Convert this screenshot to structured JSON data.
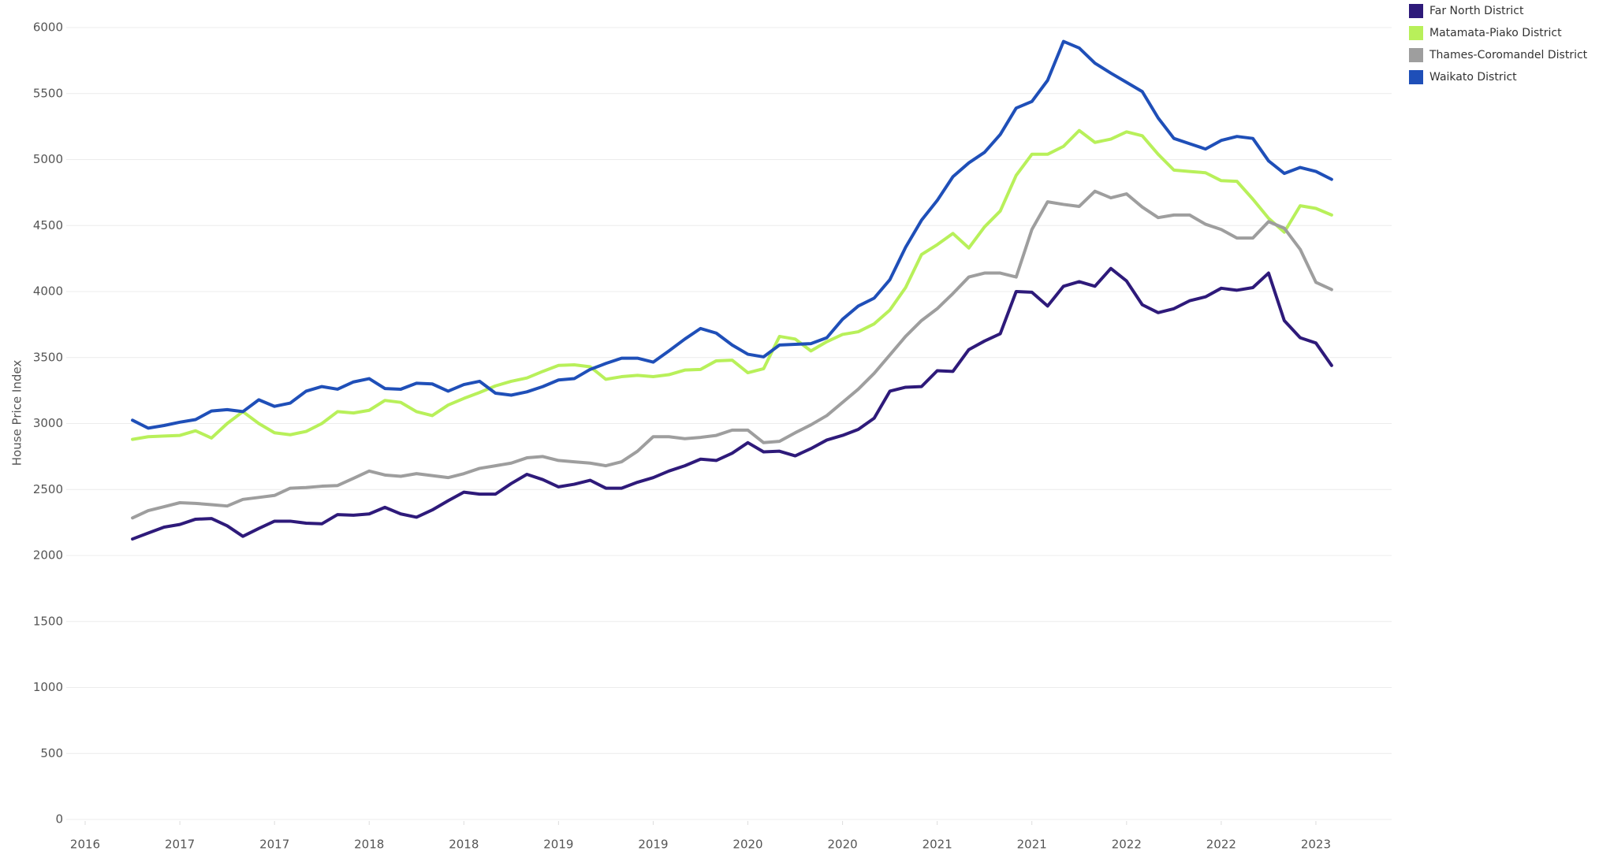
{
  "chart_data": {
    "type": "line",
    "y_label": "House Price Index",
    "x": [
      2016.75,
      2016.833,
      2016.917,
      2017,
      2017.083,
      2017.167,
      2017.25,
      2017.333,
      2017.417,
      2017.5,
      2017.583,
      2017.667,
      2017.75,
      2017.833,
      2017.917,
      2018,
      2018.083,
      2018.167,
      2018.25,
      2018.333,
      2018.417,
      2018.5,
      2018.583,
      2018.667,
      2018.75,
      2018.833,
      2018.917,
      2019,
      2019.083,
      2019.167,
      2019.25,
      2019.333,
      2019.417,
      2019.5,
      2019.583,
      2019.667,
      2019.75,
      2019.833,
      2019.917,
      2020,
      2020.083,
      2020.167,
      2020.25,
      2020.333,
      2020.417,
      2020.5,
      2020.583,
      2020.667,
      2020.75,
      2020.833,
      2020.917,
      2021,
      2021.083,
      2021.167,
      2021.25,
      2021.333,
      2021.417,
      2021.5,
      2021.583,
      2021.667,
      2021.75,
      2021.833,
      2021.917,
      2022,
      2022.083,
      2022.167,
      2022.25,
      2022.333,
      2022.417,
      2022.5,
      2022.583,
      2022.667,
      2022.75,
      2022.833,
      2022.917,
      2023,
      2023.083
    ],
    "series": [
      {
        "name": "Far North District",
        "color": "#2e1a7a",
        "values": [
          2125,
          2170,
          2215,
          2235,
          2275,
          2280,
          2225,
          2145,
          2205,
          2260,
          2260,
          2245,
          2240,
          2310,
          2305,
          2315,
          2365,
          2315,
          2290,
          2345,
          2415,
          2480,
          2465,
          2465,
          2545,
          2615,
          2575,
          2520,
          2540,
          2570,
          2510,
          2510,
          2555,
          2590,
          2640,
          2680,
          2730,
          2720,
          2775,
          2855,
          2785,
          2790,
          2755,
          2810,
          2875,
          2910,
          2955,
          3040,
          3245,
          3275,
          3280,
          3400,
          3395,
          3560,
          3625,
          3680,
          4000,
          3995,
          3890,
          4040,
          4075,
          4040,
          4175,
          4080,
          3900,
          3840,
          3870,
          3930,
          3960,
          4025,
          4010,
          4030,
          4140,
          3780,
          3650,
          3610,
          3440
        ]
      },
      {
        "name": "Matamata-Piako District",
        "color": "#b8f05a",
        "values": [
          2880,
          2900,
          2905,
          2910,
          2945,
          2890,
          3000,
          3090,
          3000,
          2930,
          2915,
          2940,
          3000,
          3090,
          3080,
          3100,
          3175,
          3160,
          3090,
          3060,
          3140,
          3190,
          3235,
          3285,
          3320,
          3345,
          3395,
          3440,
          3445,
          3430,
          3335,
          3355,
          3365,
          3355,
          3370,
          3405,
          3410,
          3475,
          3480,
          3385,
          3415,
          3660,
          3640,
          3550,
          3620,
          3675,
          3695,
          3755,
          3860,
          4030,
          4280,
          4355,
          4440,
          4330,
          4490,
          4610,
          4880,
          5040,
          5040,
          5100,
          5220,
          5130,
          5155,
          5210,
          5180,
          5040,
          4920,
          4910,
          4900,
          4840,
          4835,
          4700,
          4555,
          4450,
          4650,
          4630,
          4580
        ]
      },
      {
        "name": "Thames-Coromandel District",
        "color": "#9e9e9e",
        "values": [
          2285,
          2340,
          2370,
          2400,
          2395,
          2385,
          2375,
          2425,
          2440,
          2455,
          2510,
          2515,
          2525,
          2530,
          2585,
          2640,
          2610,
          2600,
          2620,
          2605,
          2590,
          2620,
          2660,
          2680,
          2700,
          2740,
          2750,
          2720,
          2710,
          2700,
          2680,
          2710,
          2790,
          2900,
          2900,
          2885,
          2895,
          2910,
          2950,
          2950,
          2855,
          2865,
          2930,
          2990,
          3060,
          3160,
          3260,
          3380,
          3520,
          3660,
          3780,
          3870,
          3985,
          4110,
          4140,
          4140,
          4110,
          4470,
          4680,
          4660,
          4645,
          4760,
          4710,
          4740,
          4640,
          4560,
          4580,
          4580,
          4510,
          4470,
          4405,
          4405,
          4530,
          4480,
          4320,
          4070,
          4015
        ]
      },
      {
        "name": "Waikato District",
        "color": "#1f4fb8",
        "values": [
          3025,
          2965,
          2985,
          3010,
          3030,
          3095,
          3105,
          3090,
          3180,
          3130,
          3155,
          3245,
          3280,
          3260,
          3315,
          3340,
          3265,
          3260,
          3305,
          3300,
          3245,
          3295,
          3320,
          3230,
          3215,
          3240,
          3280,
          3330,
          3340,
          3410,
          3455,
          3495,
          3495,
          3465,
          3550,
          3640,
          3720,
          3685,
          3595,
          3525,
          3505,
          3595,
          3600,
          3605,
          3650,
          3790,
          3890,
          3950,
          4090,
          4335,
          4540,
          4690,
          4870,
          4975,
          5055,
          5190,
          5390,
          5440,
          5600,
          5895,
          5845,
          5730,
          5655,
          5585,
          5515,
          5315,
          5160,
          5120,
          5080,
          5145,
          5175,
          5160,
          4990,
          4895,
          4940,
          4910,
          4850
        ]
      }
    ],
    "xlim": [
      2016.4,
      2023.4
    ],
    "xticks": [
      {
        "value": 2016.5,
        "label": "2016"
      },
      2017,
      {
        "value": 2017.5,
        "label": "2017"
      },
      2018,
      {
        "value": 2018.5,
        "label": "2018"
      },
      2019,
      {
        "value": 2019.5,
        "label": "2019"
      },
      2020,
      {
        "value": 2020.5,
        "label": "2020"
      },
      2021,
      {
        "value": 2021.5,
        "label": "2021"
      },
      2022,
      {
        "value": 2022.5,
        "label": "2022"
      },
      2023
    ],
    "ylim": [
      0,
      6000
    ],
    "yticks": [
      0,
      500,
      1000,
      1500,
      2000,
      2500,
      3000,
      3500,
      4000,
      4500,
      5000,
      5500,
      6000
    ],
    "grid": true,
    "legend": "top-right"
  }
}
